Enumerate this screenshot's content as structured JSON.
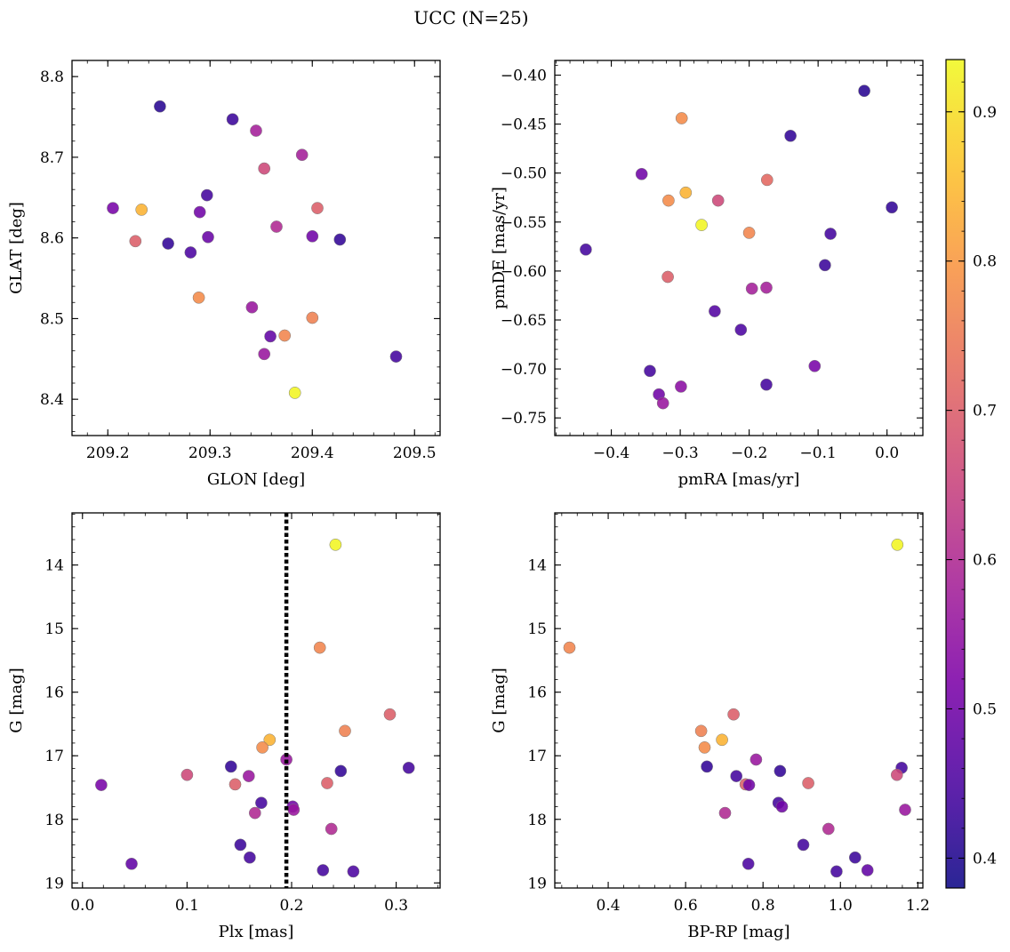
{
  "figure": {
    "title": "UCC (N=25)"
  },
  "colorbar": {
    "min": 0.38,
    "max": 0.935,
    "ticks": [
      0.4,
      0.5,
      0.6,
      0.7,
      0.8,
      0.9
    ],
    "tick_labels": [
      "0.4",
      "0.5",
      "0.6",
      "0.7",
      "0.8",
      "0.9"
    ],
    "colormap": "plasma"
  },
  "chart_data": [
    {
      "id": "glon-glat",
      "type": "scatter",
      "xlabel": "GLON [deg]",
      "ylabel": "GLAT [deg]",
      "xlim": [
        209.165,
        209.525
      ],
      "ylim": [
        8.355,
        8.82
      ],
      "y_inverted": false,
      "xticks": [
        209.2,
        209.3,
        209.4,
        209.5
      ],
      "xtick_labels": [
        "209.2",
        "209.3",
        "209.4",
        "209.5"
      ],
      "yticks": [
        8.4,
        8.5,
        8.6,
        8.7,
        8.8
      ],
      "ytick_labels": [
        "8.4",
        "8.5",
        "8.6",
        "8.7",
        "8.8"
      ],
      "x": [
        209.251,
        209.322,
        209.345,
        209.39,
        209.353,
        209.205,
        209.233,
        209.297,
        209.29,
        209.405,
        209.227,
        209.259,
        209.281,
        209.298,
        209.365,
        209.4,
        209.427,
        209.289,
        209.341,
        209.4,
        209.359,
        209.373,
        209.353,
        209.482,
        209.383
      ],
      "y": [
        8.763,
        8.747,
        8.733,
        8.703,
        8.686,
        8.637,
        8.635,
        8.653,
        8.632,
        8.637,
        8.596,
        8.593,
        8.582,
        8.601,
        8.614,
        8.602,
        8.598,
        8.526,
        8.514,
        8.501,
        8.478,
        8.479,
        8.456,
        8.453,
        8.408
      ],
      "c": [
        0.41,
        0.43,
        0.58,
        0.58,
        0.66,
        0.51,
        0.84,
        0.44,
        0.5,
        0.7,
        0.7,
        0.42,
        0.45,
        0.49,
        0.6,
        0.5,
        0.42,
        0.78,
        0.56,
        0.76,
        0.48,
        0.77,
        0.56,
        0.44,
        0.93
      ]
    },
    {
      "id": "pmra-pmde",
      "type": "scatter",
      "xlabel": "pmRA [mas/yr]",
      "ylabel": "pmDE [mas/yr]",
      "xlim": [
        -0.482,
        0.052
      ],
      "ylim": [
        -0.768,
        -0.385
      ],
      "y_inverted": false,
      "xticks": [
        -0.4,
        -0.3,
        -0.2,
        -0.1,
        0.0
      ],
      "xtick_labels": [
        "−0.4",
        "−0.3",
        "−0.2",
        "−0.1",
        "0.0"
      ],
      "yticks": [
        -0.75,
        -0.7,
        -0.65,
        -0.6,
        -0.55,
        -0.5,
        -0.45,
        -0.4
      ],
      "ytick_labels": [
        "−0.75",
        "−0.70",
        "−0.65",
        "−0.60",
        "−0.55",
        "−0.50",
        "−0.45",
        "−0.40"
      ],
      "x": [
        -0.033,
        -0.298,
        -0.14,
        -0.356,
        -0.174,
        -0.292,
        -0.317,
        -0.245,
        0.007,
        -0.269,
        -0.2,
        -0.082,
        -0.437,
        -0.09,
        -0.318,
        -0.196,
        -0.175,
        -0.25,
        -0.212,
        -0.105,
        -0.344,
        -0.175,
        -0.299,
        -0.331,
        -0.325
      ],
      "y": [
        -0.416,
        -0.444,
        -0.462,
        -0.501,
        -0.507,
        -0.52,
        -0.528,
        -0.528,
        -0.535,
        -0.553,
        -0.561,
        -0.562,
        -0.578,
        -0.594,
        -0.606,
        -0.618,
        -0.617,
        -0.641,
        -0.66,
        -0.697,
        -0.702,
        -0.716,
        -0.718,
        -0.726,
        -0.735
      ],
      "c": [
        0.41,
        0.78,
        0.42,
        0.5,
        0.72,
        0.84,
        0.78,
        0.66,
        0.42,
        0.93,
        0.77,
        0.44,
        0.44,
        0.43,
        0.7,
        0.58,
        0.58,
        0.46,
        0.45,
        0.51,
        0.44,
        0.44,
        0.54,
        0.5,
        0.56
      ]
    },
    {
      "id": "plx-g",
      "type": "scatter",
      "xlabel": "Plx [mas]",
      "ylabel": "G [mag]",
      "xlim": [
        -0.01,
        0.342
      ],
      "ylim": [
        19.08,
        13.18
      ],
      "y_inverted": true,
      "xticks": [
        0.0,
        0.1,
        0.2,
        0.3
      ],
      "xtick_labels": [
        "0.0",
        "0.1",
        "0.2",
        "0.3"
      ],
      "yticks": [
        14,
        15,
        16,
        17,
        18,
        19
      ],
      "ytick_labels": [
        "14",
        "15",
        "16",
        "17",
        "18",
        "19"
      ],
      "vline": 0.195,
      "x": [
        0.242,
        0.227,
        0.294,
        0.251,
        0.179,
        0.172,
        0.195,
        0.018,
        0.1,
        0.142,
        0.159,
        0.146,
        0.247,
        0.234,
        0.312,
        0.171,
        0.201,
        0.165,
        0.202,
        0.238,
        0.151,
        0.16,
        0.047,
        0.23,
        0.259
      ],
      "y": [
        13.68,
        15.3,
        16.35,
        16.61,
        16.75,
        16.87,
        17.06,
        17.46,
        17.3,
        17.17,
        17.32,
        17.45,
        17.24,
        17.43,
        17.19,
        17.74,
        17.8,
        17.9,
        17.85,
        18.15,
        18.4,
        18.6,
        18.7,
        18.8,
        18.82
      ],
      "c": [
        0.93,
        0.77,
        0.7,
        0.76,
        0.84,
        0.78,
        0.56,
        0.51,
        0.66,
        0.42,
        0.56,
        0.7,
        0.42,
        0.7,
        0.44,
        0.44,
        0.5,
        0.6,
        0.56,
        0.6,
        0.43,
        0.44,
        0.48,
        0.44,
        0.45
      ]
    },
    {
      "id": "bprp-g",
      "type": "scatter",
      "xlabel": "BP-RP [mag]",
      "ylabel": "G [mag]",
      "xlim": [
        0.262,
        1.213
      ],
      "ylim": [
        19.08,
        13.18
      ],
      "y_inverted": true,
      "xticks": [
        0.4,
        0.6,
        0.8,
        1.0,
        1.2
      ],
      "xtick_labels": [
        "0.4",
        "0.6",
        "0.8",
        "1.0",
        "1.2"
      ],
      "yticks": [
        14,
        15,
        16,
        17,
        18,
        19
      ],
      "ytick_labels": [
        "14",
        "15",
        "16",
        "17",
        "18",
        "19"
      ],
      "x": [
        1.147,
        0.3,
        0.724,
        0.64,
        0.694,
        0.649,
        0.782,
        0.655,
        0.731,
        0.844,
        0.755,
        0.764,
        1.158,
        0.917,
        1.146,
        0.84,
        0.849,
        0.702,
        1.167,
        0.969,
        0.904,
        1.038,
        0.762,
        0.99,
        1.07
      ],
      "y": [
        13.68,
        15.3,
        16.35,
        16.61,
        16.75,
        16.87,
        17.06,
        17.17,
        17.32,
        17.24,
        17.45,
        17.46,
        17.19,
        17.43,
        17.3,
        17.74,
        17.8,
        17.9,
        17.85,
        18.15,
        18.4,
        18.6,
        18.7,
        18.82,
        18.8
      ],
      "c": [
        0.93,
        0.77,
        0.7,
        0.76,
        0.84,
        0.78,
        0.56,
        0.42,
        0.44,
        0.42,
        0.7,
        0.5,
        0.44,
        0.7,
        0.66,
        0.44,
        0.5,
        0.6,
        0.56,
        0.6,
        0.44,
        0.43,
        0.45,
        0.44,
        0.48
      ]
    }
  ]
}
